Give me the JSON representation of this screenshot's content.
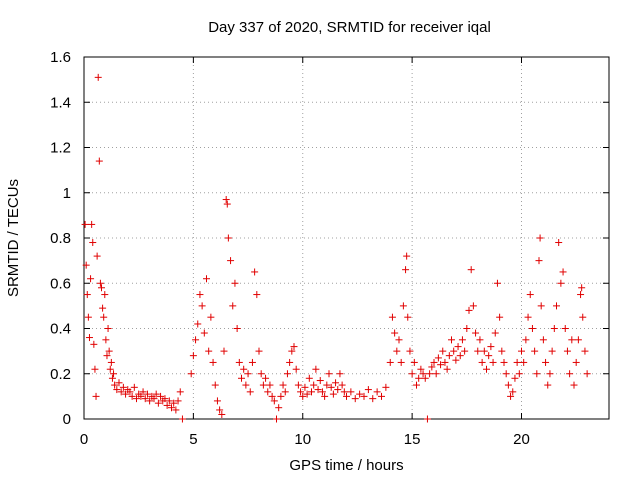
{
  "chart_data": {
    "type": "scatter",
    "title": "Day 337 of 2020, SRMTID for receiver iqal",
    "xlabel": "GPS time / hours",
    "ylabel": "SRMTID / TECUs",
    "xlim": [
      0,
      24
    ],
    "ylim": [
      0,
      1.6
    ],
    "xticks": [
      0,
      5,
      10,
      15,
      20
    ],
    "xtick_labels": [
      "0",
      "5",
      "10",
      "15",
      "20"
    ],
    "yticks": [
      0,
      0.2,
      0.4,
      0.6,
      0.8,
      1.0,
      1.2,
      1.4,
      1.6
    ],
    "ytick_labels": [
      "0",
      "0.2",
      "0.4",
      "0.6",
      "0.8",
      "1",
      "1.2",
      "1.4",
      "1.6"
    ],
    "grid": true,
    "marker": "plus",
    "series": [
      {
        "name": "SRMTID",
        "color": "#e00000",
        "points": [
          [
            0.05,
            0.86
          ],
          [
            0.1,
            0.68
          ],
          [
            0.15,
            0.55
          ],
          [
            0.2,
            0.45
          ],
          [
            0.25,
            0.36
          ],
          [
            0.3,
            0.62
          ],
          [
            0.35,
            0.86
          ],
          [
            0.4,
            0.78
          ],
          [
            0.45,
            0.33
          ],
          [
            0.5,
            0.22
          ],
          [
            0.55,
            0.1
          ],
          [
            0.6,
            0.72
          ],
          [
            0.65,
            1.51
          ],
          [
            0.7,
            1.14
          ],
          [
            0.75,
            0.6
          ],
          [
            0.8,
            0.58
          ],
          [
            0.85,
            0.49
          ],
          [
            0.9,
            0.45
          ],
          [
            0.95,
            0.55
          ],
          [
            1.0,
            0.35
          ],
          [
            1.05,
            0.28
          ],
          [
            1.1,
            0.4
          ],
          [
            1.15,
            0.3
          ],
          [
            1.2,
            0.22
          ],
          [
            1.25,
            0.25
          ],
          [
            1.3,
            0.18
          ],
          [
            1.35,
            0.2
          ],
          [
            1.4,
            0.15
          ],
          [
            1.5,
            0.13
          ],
          [
            1.6,
            0.16
          ],
          [
            1.7,
            0.12
          ],
          [
            1.8,
            0.14
          ],
          [
            1.9,
            0.11
          ],
          [
            2.0,
            0.13
          ],
          [
            2.1,
            0.12
          ],
          [
            2.2,
            0.1
          ],
          [
            2.3,
            0.14
          ],
          [
            2.4,
            0.09
          ],
          [
            2.5,
            0.11
          ],
          [
            2.6,
            0.1
          ],
          [
            2.7,
            0.12
          ],
          [
            2.8,
            0.09
          ],
          [
            2.9,
            0.11
          ],
          [
            3.0,
            0.08
          ],
          [
            3.1,
            0.1
          ],
          [
            3.2,
            0.09
          ],
          [
            3.3,
            0.11
          ],
          [
            3.4,
            0.07
          ],
          [
            3.5,
            0.1
          ],
          [
            3.6,
            0.08
          ],
          [
            3.7,
            0.09
          ],
          [
            3.8,
            0.06
          ],
          [
            3.9,
            0.08
          ],
          [
            4.0,
            0.05
          ],
          [
            4.1,
            0.07
          ],
          [
            4.2,
            0.04
          ],
          [
            4.3,
            0.08
          ],
          [
            4.4,
            0.12
          ],
          [
            4.5,
            0.0
          ],
          [
            4.9,
            0.2
          ],
          [
            5.0,
            0.28
          ],
          [
            5.1,
            0.35
          ],
          [
            5.2,
            0.42
          ],
          [
            5.3,
            0.55
          ],
          [
            5.4,
            0.5
          ],
          [
            5.5,
            0.38
          ],
          [
            5.6,
            0.62
          ],
          [
            5.7,
            0.3
          ],
          [
            5.8,
            0.45
          ],
          [
            5.9,
            0.25
          ],
          [
            6.0,
            0.15
          ],
          [
            6.1,
            0.08
          ],
          [
            6.2,
            0.04
          ],
          [
            6.3,
            0.02
          ],
          [
            6.4,
            0.3
          ],
          [
            6.5,
            0.97
          ],
          [
            6.55,
            0.95
          ],
          [
            6.6,
            0.8
          ],
          [
            6.7,
            0.7
          ],
          [
            6.8,
            0.5
          ],
          [
            6.9,
            0.6
          ],
          [
            7.0,
            0.4
          ],
          [
            7.1,
            0.25
          ],
          [
            7.2,
            0.18
          ],
          [
            7.3,
            0.22
          ],
          [
            7.4,
            0.15
          ],
          [
            7.5,
            0.2
          ],
          [
            7.6,
            0.12
          ],
          [
            7.7,
            0.25
          ],
          [
            7.8,
            0.65
          ],
          [
            7.9,
            0.55
          ],
          [
            8.0,
            0.3
          ],
          [
            8.1,
            0.2
          ],
          [
            8.2,
            0.15
          ],
          [
            8.3,
            0.18
          ],
          [
            8.4,
            0.12
          ],
          [
            8.5,
            0.15
          ],
          [
            8.6,
            0.1
          ],
          [
            8.7,
            0.08
          ],
          [
            8.8,
            0.0
          ],
          [
            8.9,
            0.05
          ],
          [
            9.0,
            0.1
          ],
          [
            9.1,
            0.15
          ],
          [
            9.2,
            0.12
          ],
          [
            9.3,
            0.2
          ],
          [
            9.4,
            0.25
          ],
          [
            9.5,
            0.3
          ],
          [
            9.6,
            0.32
          ],
          [
            9.7,
            0.22
          ],
          [
            9.8,
            0.15
          ],
          [
            9.9,
            0.12
          ],
          [
            10.0,
            0.1
          ],
          [
            10.1,
            0.14
          ],
          [
            10.2,
            0.11
          ],
          [
            10.3,
            0.18
          ],
          [
            10.4,
            0.12
          ],
          [
            10.5,
            0.15
          ],
          [
            10.6,
            0.22
          ],
          [
            10.7,
            0.13
          ],
          [
            10.8,
            0.17
          ],
          [
            10.9,
            0.12
          ],
          [
            11.0,
            0.1
          ],
          [
            11.1,
            0.15
          ],
          [
            11.2,
            0.2
          ],
          [
            11.3,
            0.14
          ],
          [
            11.4,
            0.11
          ],
          [
            11.5,
            0.16
          ],
          [
            11.6,
            0.13
          ],
          [
            11.7,
            0.2
          ],
          [
            11.8,
            0.15
          ],
          [
            11.9,
            0.12
          ],
          [
            12.0,
            0.1
          ],
          [
            12.2,
            0.12
          ],
          [
            12.4,
            0.09
          ],
          [
            12.6,
            0.11
          ],
          [
            12.8,
            0.1
          ],
          [
            13.0,
            0.13
          ],
          [
            13.2,
            0.09
          ],
          [
            13.4,
            0.12
          ],
          [
            13.6,
            0.1
          ],
          [
            13.8,
            0.14
          ],
          [
            14.0,
            0.25
          ],
          [
            14.1,
            0.45
          ],
          [
            14.2,
            0.38
          ],
          [
            14.3,
            0.3
          ],
          [
            14.4,
            0.35
          ],
          [
            14.5,
            0.25
          ],
          [
            14.6,
            0.5
          ],
          [
            14.7,
            0.66
          ],
          [
            14.75,
            0.72
          ],
          [
            14.8,
            0.45
          ],
          [
            14.9,
            0.3
          ],
          [
            15.0,
            0.2
          ],
          [
            15.1,
            0.25
          ],
          [
            15.2,
            0.15
          ],
          [
            15.3,
            0.18
          ],
          [
            15.4,
            0.22
          ],
          [
            15.5,
            0.2
          ],
          [
            15.6,
            0.18
          ],
          [
            15.7,
            0.0
          ],
          [
            15.8,
            0.2
          ],
          [
            15.9,
            0.23
          ],
          [
            16.0,
            0.25
          ],
          [
            16.1,
            0.2
          ],
          [
            16.2,
            0.27
          ],
          [
            16.3,
            0.24
          ],
          [
            16.4,
            0.3
          ],
          [
            16.5,
            0.25
          ],
          [
            16.6,
            0.22
          ],
          [
            16.7,
            0.28
          ],
          [
            16.8,
            0.35
          ],
          [
            16.9,
            0.3
          ],
          [
            17.0,
            0.26
          ],
          [
            17.1,
            0.32
          ],
          [
            17.2,
            0.28
          ],
          [
            17.3,
            0.35
          ],
          [
            17.4,
            0.3
          ],
          [
            17.5,
            0.4
          ],
          [
            17.6,
            0.48
          ],
          [
            17.7,
            0.66
          ],
          [
            17.8,
            0.5
          ],
          [
            17.9,
            0.38
          ],
          [
            18.0,
            0.3
          ],
          [
            18.1,
            0.35
          ],
          [
            18.2,
            0.25
          ],
          [
            18.3,
            0.3
          ],
          [
            18.4,
            0.22
          ],
          [
            18.5,
            0.28
          ],
          [
            18.6,
            0.32
          ],
          [
            18.7,
            0.25
          ],
          [
            18.8,
            0.38
          ],
          [
            18.9,
            0.6
          ],
          [
            19.0,
            0.45
          ],
          [
            19.1,
            0.3
          ],
          [
            19.2,
            0.25
          ],
          [
            19.3,
            0.2
          ],
          [
            19.4,
            0.15
          ],
          [
            19.5,
            0.1
          ],
          [
            19.6,
            0.12
          ],
          [
            19.7,
            0.18
          ],
          [
            19.8,
            0.25
          ],
          [
            19.9,
            0.2
          ],
          [
            20.0,
            0.3
          ],
          [
            20.1,
            0.25
          ],
          [
            20.2,
            0.35
          ],
          [
            20.3,
            0.45
          ],
          [
            20.4,
            0.55
          ],
          [
            20.5,
            0.4
          ],
          [
            20.6,
            0.3
          ],
          [
            20.7,
            0.2
          ],
          [
            20.8,
            0.7
          ],
          [
            20.85,
            0.8
          ],
          [
            20.9,
            0.5
          ],
          [
            21.0,
            0.35
          ],
          [
            21.1,
            0.25
          ],
          [
            21.2,
            0.15
          ],
          [
            21.3,
            0.2
          ],
          [
            21.4,
            0.3
          ],
          [
            21.5,
            0.4
          ],
          [
            21.6,
            0.5
          ],
          [
            21.7,
            0.78
          ],
          [
            21.8,
            0.6
          ],
          [
            21.9,
            0.65
          ],
          [
            22.0,
            0.4
          ],
          [
            22.1,
            0.3
          ],
          [
            22.2,
            0.2
          ],
          [
            22.3,
            0.35
          ],
          [
            22.4,
            0.15
          ],
          [
            22.5,
            0.25
          ],
          [
            22.6,
            0.35
          ],
          [
            22.7,
            0.55
          ],
          [
            22.75,
            0.58
          ],
          [
            22.8,
            0.45
          ],
          [
            22.9,
            0.3
          ],
          [
            23.0,
            0.2
          ]
        ]
      }
    ]
  }
}
